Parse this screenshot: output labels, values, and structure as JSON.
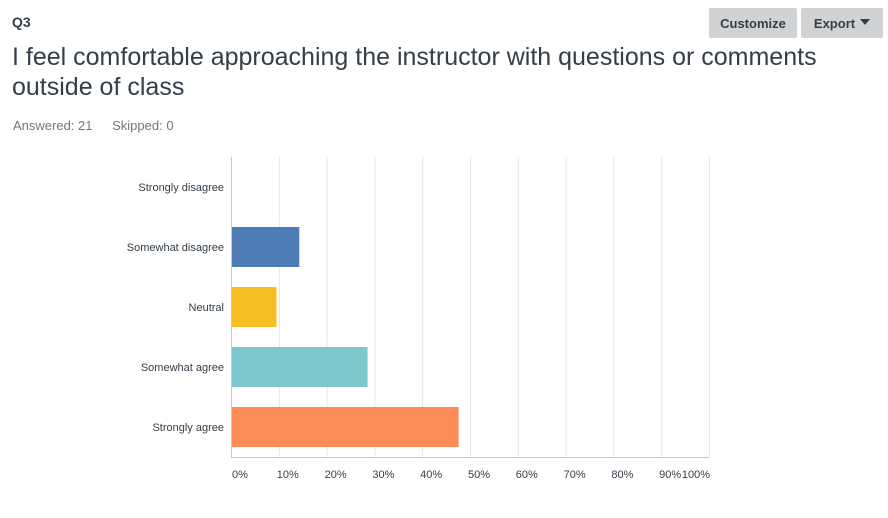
{
  "question": {
    "number": "Q3",
    "title": "I feel comfortable approaching the instructor with questions or comments outside of class",
    "answered_label": "Answered: 21",
    "skipped_label": "Skipped: 0"
  },
  "toolbar": {
    "customize_label": "Customize",
    "export_label": "Export"
  },
  "chart_data": {
    "type": "bar",
    "orientation": "horizontal",
    "categories": [
      "Strongly disagree",
      "Somewhat disagree",
      "Neutral",
      "Somewhat agree",
      "Strongly agree"
    ],
    "values": [
      0,
      14.29,
      9.52,
      28.57,
      47.62
    ],
    "colors": [
      "#507cb6",
      "#507cb6",
      "#f6be23",
      "#7cc8cc",
      "#fc8d59"
    ],
    "xlim": [
      0,
      100
    ],
    "xticks": [
      "0%",
      "10%",
      "20%",
      "30%",
      "40%",
      "50%",
      "60%",
      "70%",
      "80%",
      "90%",
      "100%"
    ],
    "grid": true,
    "legend": "none"
  }
}
